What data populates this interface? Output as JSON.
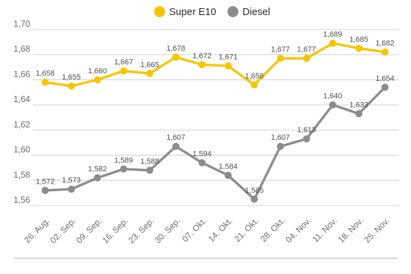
{
  "chart": {
    "legend": [
      {
        "label": "Super E10",
        "color": "#f7c600"
      },
      {
        "label": "Diesel",
        "color": "#8c8c8c"
      }
    ]
  },
  "chart_data": {
    "type": "line",
    "title": "",
    "xlabel": "",
    "ylabel": "",
    "grid": true,
    "legend_position": "top",
    "categories": [
      "26. Aug.",
      "02. Sep.",
      "09. Sep.",
      "16. Sep.",
      "23. Sep.",
      "30. Sep.",
      "07. Okt.",
      "14. Okt.",
      "21. Okt.",
      "28. Okt.",
      "04. Nov.",
      "11. Nov.",
      "18. Nov.",
      "25. Nov."
    ],
    "series": [
      {
        "name": "Super E10",
        "color": "#f7c600",
        "values": [
          1.658,
          1.655,
          1.66,
          1.667,
          1.665,
          1.678,
          1.672,
          1.671,
          1.656,
          1.677,
          1.677,
          1.689,
          1.685,
          1.682
        ],
        "labels": [
          "1,658",
          "1,655",
          "1,660",
          "1,667",
          "1,665",
          "1,678",
          "1,672",
          "1,671",
          "1,656",
          "1,677",
          "1,677",
          "1,689",
          "1,685",
          "1,682"
        ]
      },
      {
        "name": "Diesel",
        "color": "#8c8c8c",
        "values": [
          1.572,
          1.573,
          1.582,
          1.589,
          1.588,
          1.607,
          1.594,
          1.584,
          1.565,
          1.607,
          1.613,
          1.64,
          1.633,
          1.654
        ],
        "labels": [
          "1,572",
          "1,573",
          "1,582",
          "1,589",
          "1,588",
          "1,607",
          "1,594",
          "1,584",
          "1,565",
          "1,607",
          "1,613",
          "1,640",
          "1,633",
          "1,654"
        ]
      }
    ],
    "yticks": [
      "1,70",
      "1,68",
      "1,66",
      "1,64",
      "1,62",
      "1,60",
      "1,58",
      "1,56"
    ],
    "ytick_values": [
      1.7,
      1.68,
      1.66,
      1.64,
      1.62,
      1.6,
      1.58,
      1.56
    ],
    "ylim": [
      1.56,
      1.7
    ]
  },
  "style": {
    "grid_color": "#d9d9d9",
    "divider_color": "#d4d4d4",
    "axis_text_color": "#6e6e6e",
    "label_text_color": "#4d4d4d",
    "legend_text_color": "#2b2b2b",
    "background": "#ffffff"
  }
}
